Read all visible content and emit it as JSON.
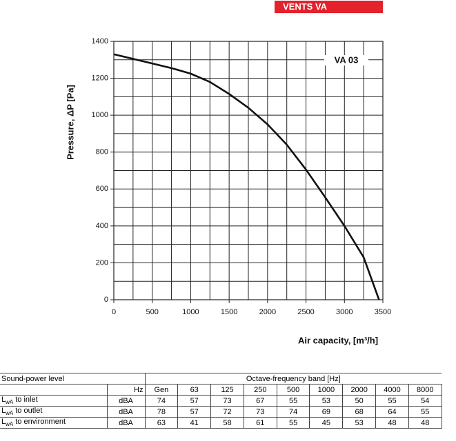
{
  "header": {
    "title": "VENTS VA"
  },
  "chart_data": {
    "type": "line",
    "x": [
      0,
      250,
      500,
      750,
      1000,
      1250,
      1500,
      1750,
      2000,
      2250,
      2500,
      2750,
      3000,
      3250,
      3450
    ],
    "series": [
      {
        "name": "VA 03",
        "color": "#111111",
        "values": [
          1330,
          1305,
          1280,
          1255,
          1225,
          1180,
          1115,
          1040,
          950,
          840,
          705,
          555,
          400,
          230,
          0
        ]
      }
    ],
    "xlabel": "Air capacity, [m³/h]",
    "ylabel": "Pressure, ΔP [Pa]",
    "xlim": [
      0,
      3500
    ],
    "ylim": [
      0,
      1400
    ],
    "xticks": [
      0,
      500,
      1000,
      1500,
      2000,
      2500,
      3000,
      3500
    ],
    "yticks": [
      0,
      200,
      400,
      600,
      800,
      1000,
      1200,
      1400
    ],
    "xgrid": [
      250,
      500,
      750,
      1000,
      1250,
      1500,
      1750,
      2000,
      2250,
      2500,
      2750,
      3000,
      3250
    ],
    "ygrid": [
      100,
      200,
      300,
      400,
      500,
      600,
      700,
      800,
      900,
      1000,
      1100,
      1200,
      1300
    ],
    "grid": true
  },
  "table": {
    "header": [
      "Sound-power level",
      "Octave-frequency band [Hz]"
    ],
    "columns": [
      "Hz",
      "Gen",
      "63",
      "125",
      "250",
      "500",
      "1000",
      "2000",
      "4000",
      "8000"
    ],
    "rows": [
      {
        "label": {
          "symbol": "L",
          "subscript": "wA",
          "text": "to inlet"
        },
        "cells": [
          "dBA",
          74,
          57,
          73,
          67,
          55,
          53,
          50,
          55,
          54
        ]
      },
      {
        "label": {
          "symbol": "L",
          "subscript": "wA",
          "text": "to outlet"
        },
        "cells": [
          "dBA",
          78,
          57,
          72,
          73,
          74,
          69,
          68,
          64,
          55
        ]
      },
      {
        "label": {
          "symbol": "L",
          "subscript": "wA",
          "text": "to environment"
        },
        "cells": [
          "dBA",
          63,
          41,
          58,
          61,
          55,
          45,
          53,
          48,
          48
        ]
      }
    ]
  }
}
